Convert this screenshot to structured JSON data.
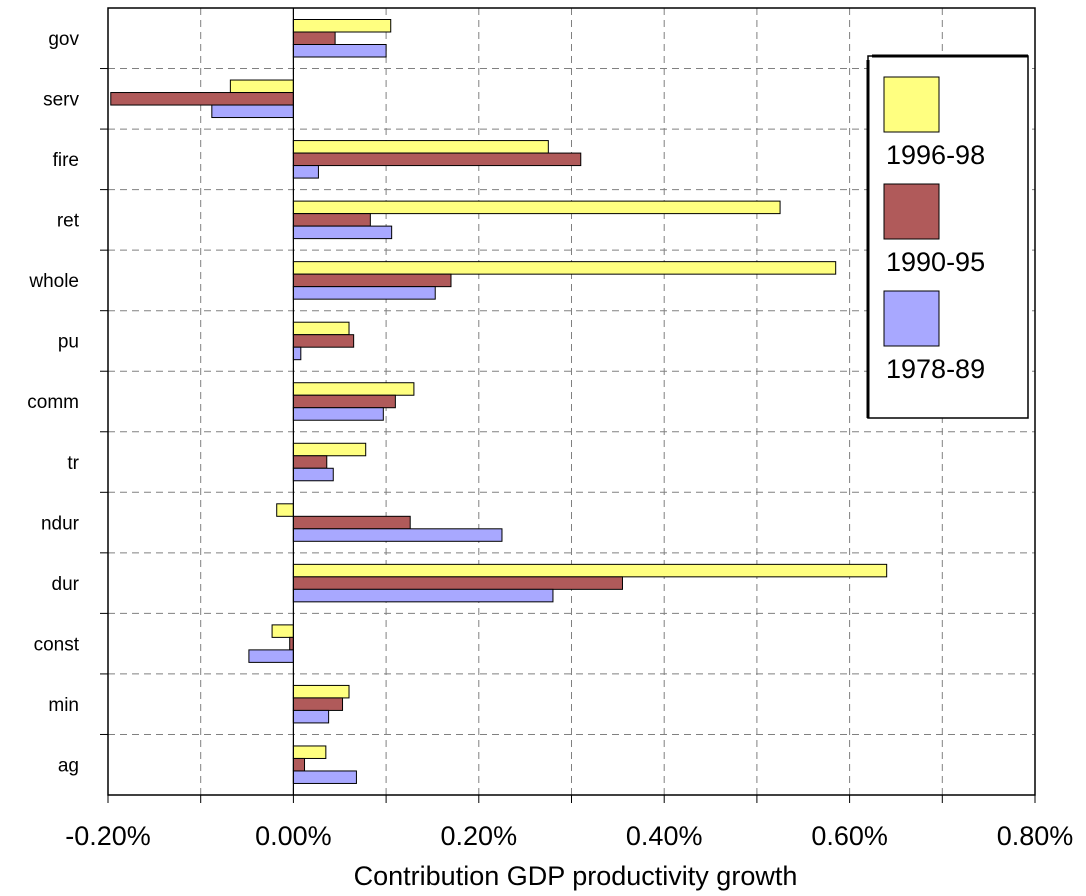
{
  "chart_data": {
    "type": "bar",
    "orientation": "horizontal",
    "categories": [
      "gov",
      "serv",
      "fire",
      "ret",
      "whole",
      "pu",
      "comm",
      "tr",
      "ndur",
      "dur",
      "const",
      "min",
      "ag"
    ],
    "series": [
      {
        "name": "1996-98",
        "color": "#ffff80",
        "values": [
          0.105,
          -0.068,
          0.275,
          0.525,
          0.585,
          0.06,
          0.13,
          0.078,
          -0.018,
          0.64,
          -0.023,
          0.06,
          0.035
        ]
      },
      {
        "name": "1990-95",
        "color": "#b05a5a",
        "values": [
          0.045,
          -0.197,
          0.31,
          0.083,
          0.17,
          0.065,
          0.11,
          0.036,
          0.126,
          0.355,
          -0.004,
          0.053,
          0.012
        ]
      },
      {
        "name": "1978-89",
        "color": "#a8a8ff",
        "values": [
          0.1,
          -0.088,
          0.027,
          0.106,
          0.153,
          0.008,
          0.097,
          0.043,
          0.225,
          0.28,
          -0.048,
          0.038,
          0.068
        ]
      }
    ],
    "xlabel": "Contribution GDP productivity growth",
    "xlim": [
      -0.2,
      0.8
    ],
    "xticks": [
      -0.2,
      0,
      0.2,
      0.4,
      0.6,
      0.8
    ],
    "xtick_labels": [
      "-0.20%",
      "0.00%",
      "0.20%",
      "0.40%",
      "0.60%",
      "0.80%"
    ],
    "grid": true,
    "legend_position": "right"
  }
}
